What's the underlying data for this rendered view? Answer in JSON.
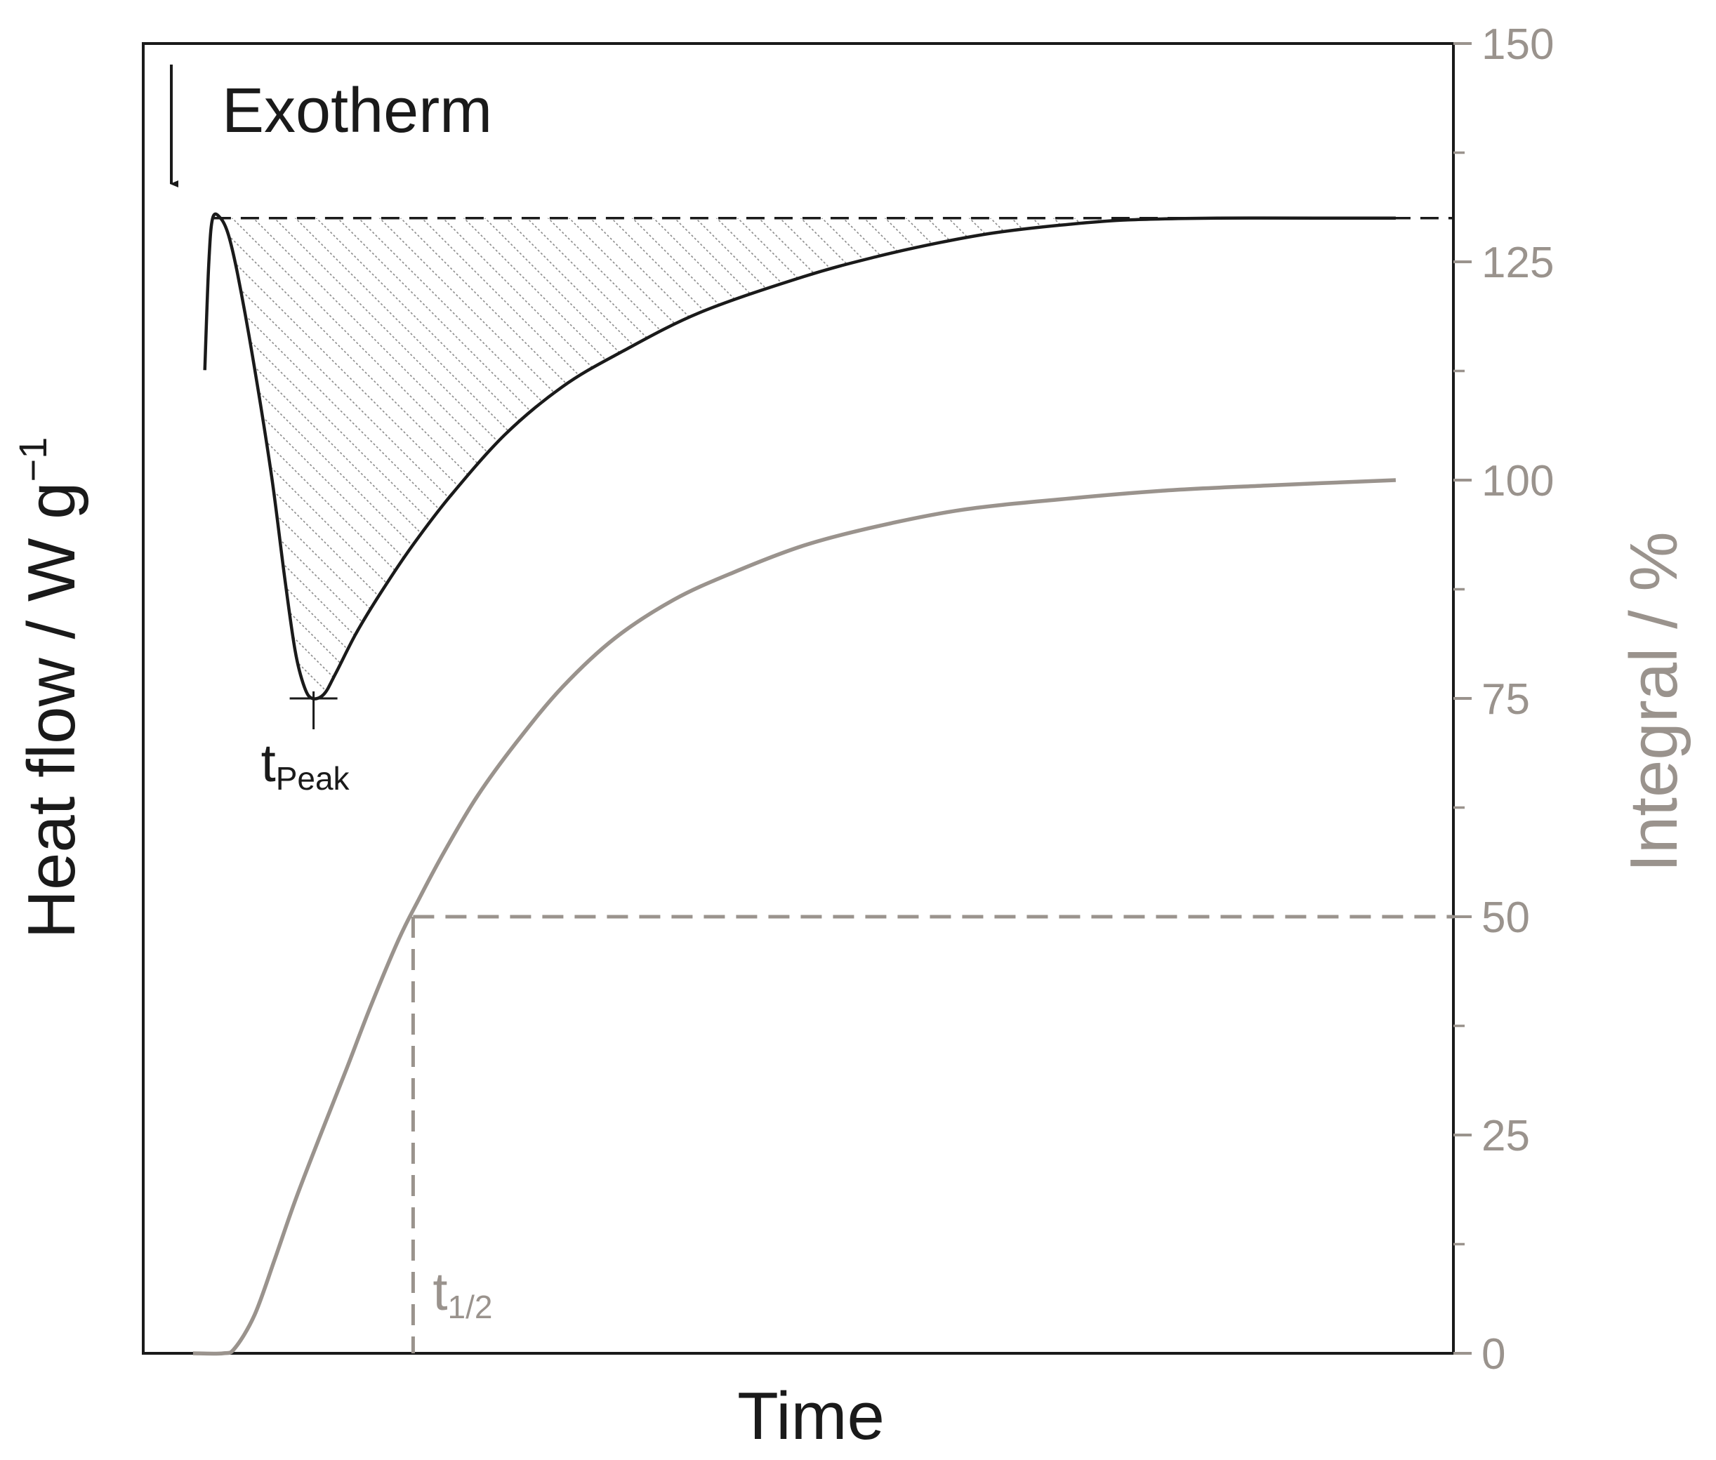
{
  "chart_data": {
    "type": "line",
    "xlabel": "Time",
    "ylabel_left": "Heat flow / W g",
    "ylabel_left_superscript": "−1",
    "ylabel_right": "Integral / %",
    "right_axis": {
      "ylim": [
        0,
        150
      ],
      "major_ticks": [
        0,
        25,
        50,
        75,
        100,
        125,
        150
      ],
      "minor_ticks": [
        12.5,
        37.5,
        62.5,
        87.5,
        112.5,
        137.5
      ],
      "tick_labels": [
        "0",
        "25",
        "50",
        "75",
        "100",
        "125",
        "150"
      ]
    },
    "xlim": [
      0,
      100
    ],
    "series": [
      {
        "axis": "left",
        "color": "#1a1a1a",
        "points": [
          [
            4.7,
            112.6
          ],
          [
            5.0,
            124.7
          ],
          [
            5.3,
            130.0
          ],
          [
            5.9,
            130.0
          ],
          [
            6.5,
            128.1
          ],
          [
            7.2,
            123.6
          ],
          [
            8.4,
            113.7
          ],
          [
            9.8,
            100.4
          ],
          [
            10.8,
            88.8
          ],
          [
            11.6,
            80.4
          ],
          [
            12.3,
            76.3
          ],
          [
            12.9,
            75.0
          ],
          [
            13.8,
            75.5
          ],
          [
            14.7,
            77.9
          ],
          [
            16.3,
            82.6
          ],
          [
            18.3,
            87.5
          ],
          [
            20.5,
            92.4
          ],
          [
            23.4,
            98.1
          ],
          [
            27.6,
            105.2
          ],
          [
            32.0,
            110.7
          ],
          [
            36.4,
            114.6
          ],
          [
            42.5,
            119.2
          ],
          [
            50.4,
            123.3
          ],
          [
            56.0,
            125.6
          ],
          [
            60.8,
            127.2
          ],
          [
            64.9,
            128.3
          ],
          [
            70.0,
            129.2
          ],
          [
            75.2,
            129.8
          ],
          [
            82.0,
            130.0
          ],
          [
            89.6,
            130.0
          ],
          [
            95.6,
            130.0
          ]
        ]
      },
      {
        "axis": "right",
        "color": "#9a938d",
        "points": [
          [
            3.8,
            0
          ],
          [
            6.1,
            0
          ],
          [
            7.0,
            0.6
          ],
          [
            8.5,
            4.4
          ],
          [
            10.0,
            10.6
          ],
          [
            11.6,
            17.5
          ],
          [
            13.5,
            24.9
          ],
          [
            15.5,
            32.5
          ],
          [
            17.4,
            39.9
          ],
          [
            19.5,
            47.4
          ],
          [
            21.0,
            51.9
          ],
          [
            23.0,
            57.5
          ],
          [
            25.5,
            63.8
          ],
          [
            28.5,
            70.0
          ],
          [
            32.0,
            76.3
          ],
          [
            36.0,
            81.9
          ],
          [
            40.5,
            86.3
          ],
          [
            45.0,
            89.4
          ],
          [
            50.4,
            92.5
          ],
          [
            56.0,
            94.7
          ],
          [
            62.5,
            96.6
          ],
          [
            70.0,
            97.8
          ],
          [
            78.0,
            98.8
          ],
          [
            86.0,
            99.4
          ],
          [
            95.6,
            100.0
          ]
        ]
      }
    ],
    "baseline_y_left": 130.0,
    "peak": {
      "x": 13.0,
      "y_left": 75.0
    },
    "half_time": {
      "x": 20.6,
      "y_right": 50
    },
    "annotations": {
      "exotherm": "Exotherm",
      "t_peak_base": "t",
      "t_peak_sub": "Peak",
      "t_half_base": "t",
      "t_half_sub": "1/2"
    }
  }
}
